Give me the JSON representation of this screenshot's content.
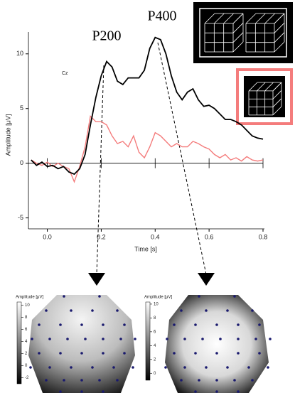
{
  "chart_data": [
    {
      "type": "line",
      "y_label": "Amplitude [μV]",
      "x_label": "Time [s]",
      "annotations": [
        "Cz",
        "P200",
        "P400"
      ],
      "x": [
        -0.06,
        -0.04,
        -0.02,
        0,
        0.02,
        0.04,
        0.06,
        0.08,
        0.1,
        0.12,
        0.14,
        0.16,
        0.18,
        0.2,
        0.22,
        0.24,
        0.26,
        0.28,
        0.3,
        0.32,
        0.34,
        0.36,
        0.38,
        0.4,
        0.42,
        0.44,
        0.46,
        0.48,
        0.5,
        0.52,
        0.54,
        0.56,
        0.58,
        0.6,
        0.62,
        0.64,
        0.66,
        0.68,
        0.7,
        0.72,
        0.74,
        0.76,
        0.78,
        0.8
      ],
      "series": [
        {
          "color": "#000000",
          "values": [
            0.3,
            -0.2,
            0.1,
            -0.3,
            -0.2,
            -0.5,
            -0.3,
            -0.8,
            -1.0,
            -0.5,
            0.8,
            3.5,
            6.0,
            8.0,
            9.3,
            8.8,
            7.5,
            7.2,
            7.8,
            7.8,
            7.8,
            8.5,
            10.5,
            11.5,
            11.3,
            10.0,
            8.0,
            6.5,
            5.8,
            6.5,
            6.8,
            5.8,
            5.2,
            5.3,
            5.0,
            4.5,
            4.0,
            4.0,
            3.8,
            3.5,
            3.0,
            2.5,
            2.3,
            2.2
          ]
        },
        {
          "color": "#f47c7c",
          "values": [
            0.3,
            0,
            -0.2,
            0.1,
            -0.3,
            0,
            -0.3,
            -0.5,
            -1.7,
            -0.3,
            1.5,
            4.3,
            3.8,
            3.8,
            3.5,
            2.5,
            1.8,
            2.0,
            1.5,
            2.5,
            1.0,
            0.5,
            1.5,
            2.8,
            2.5,
            2.0,
            1.5,
            1.8,
            1.5,
            1.5,
            2.0,
            1.8,
            1.5,
            1.3,
            0.8,
            0.5,
            0.8,
            0.3,
            0.5,
            0.2,
            0.6,
            0.3,
            0.2,
            0.3
          ]
        }
      ],
      "xlim": [
        -0.07,
        0.8
      ],
      "ylim": [
        -6,
        12
      ],
      "xticks": [
        {
          "value": 0,
          "label": "0.0"
        },
        0.2,
        0.4,
        0.6,
        0.8
      ],
      "yticks": [
        -5,
        0,
        5,
        10
      ],
      "grid": false
    },
    {
      "type": "topomap",
      "colorbar_label": "Amplitude [μV]",
      "ylim": [
        -3,
        10.5
      ],
      "yticks": [
        10,
        8,
        6,
        4,
        2,
        0,
        -2
      ]
    },
    {
      "type": "topomap",
      "colorbar_label": "Amplitude [μV]",
      "ylim": [
        -1,
        10.3
      ],
      "yticks": [
        10,
        8,
        6,
        4,
        2,
        0
      ]
    }
  ]
}
